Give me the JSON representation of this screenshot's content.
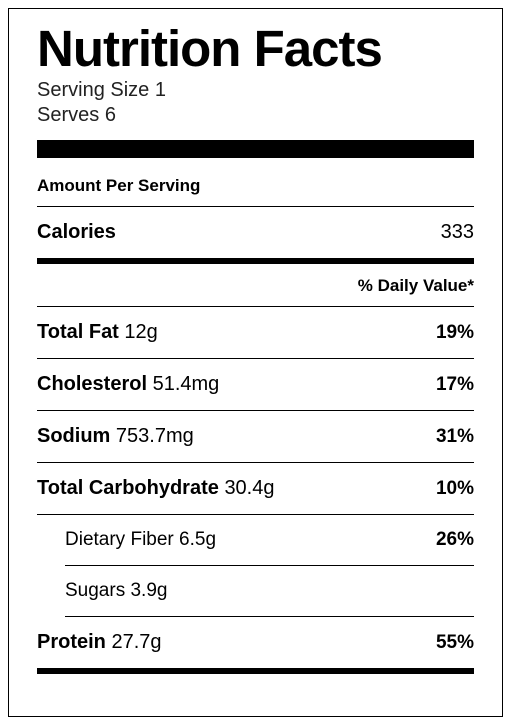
{
  "title": "Nutrition Facts",
  "serving_size_label": "Serving Size",
  "serving_size_value": "1",
  "serves_label": "Serves",
  "serves_value": "6",
  "amount_per_serving": "Amount Per Serving",
  "calories_label": "Calories",
  "calories_value": "333",
  "daily_value_header": "% Daily Value*",
  "rows": {
    "total_fat": {
      "label": "Total Fat",
      "amount": "12g",
      "dv": "19%"
    },
    "cholesterol": {
      "label": "Cholesterol",
      "amount": "51.4mg",
      "dv": "17%"
    },
    "sodium": {
      "label": "Sodium",
      "amount": "753.7mg",
      "dv": "31%"
    },
    "total_carb": {
      "label": "Total Carbohydrate",
      "amount": "30.4g",
      "dv": "10%"
    },
    "dietary_fiber": {
      "label": "Dietary Fiber",
      "amount": "6.5g",
      "dv": "26%"
    },
    "sugars": {
      "label": "Sugars",
      "amount": "3.9g",
      "dv": ""
    },
    "protein": {
      "label": "Protein",
      "amount": "27.7g",
      "dv": "55%"
    }
  },
  "colors": {
    "text": "#000000",
    "background": "#ffffff",
    "border": "#000000"
  }
}
